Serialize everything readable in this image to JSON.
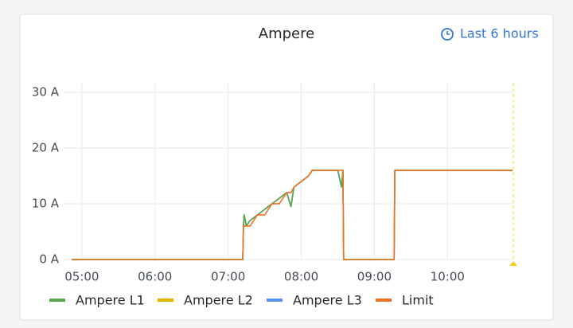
{
  "chart_data": {
    "type": "line",
    "title": "Ampere",
    "time_range": "Last 6 hours",
    "x": [
      4.86,
      7.2,
      7.21,
      7.22,
      7.25,
      7.3,
      7.4,
      7.5,
      7.6,
      7.7,
      7.8,
      7.86,
      7.9,
      8.0,
      8.1,
      8.15,
      8.5,
      8.55,
      8.57,
      8.58,
      9.27,
      9.28,
      10.89
    ],
    "series": [
      {
        "name": "Ampere L2",
        "color": "#e0b400",
        "values": [
          0,
          0,
          6,
          8,
          6,
          7,
          8,
          9,
          10,
          11,
          12,
          9.5,
          13,
          14,
          15,
          16,
          16,
          13,
          16,
          0,
          0,
          16,
          16
        ]
      },
      {
        "name": "Ampere L3",
        "color": "#5794f2",
        "values": [
          0,
          0,
          6,
          8,
          6,
          7,
          8,
          9,
          10,
          11,
          12,
          9.5,
          13,
          14,
          15,
          16,
          16,
          13,
          16,
          0,
          0,
          16,
          16
        ]
      },
      {
        "name": "Ampere L1",
        "color": "#56a64b",
        "values": [
          0,
          0,
          6,
          8,
          6,
          7,
          8,
          9,
          10,
          11,
          12,
          9.5,
          13,
          14,
          15,
          16,
          16,
          13,
          16,
          0,
          0,
          16,
          16
        ]
      },
      {
        "name": "Limit",
        "color": "#f2701f",
        "values": [
          0,
          0,
          6,
          6,
          6,
          6,
          8,
          8,
          10,
          10,
          12,
          12,
          13,
          14,
          15,
          16,
          16,
          16,
          16,
          0,
          0,
          16,
          16
        ]
      }
    ],
    "legend_order": [
      2,
      0,
      1,
      3
    ],
    "xlim": [
      4.86,
      10.9
    ],
    "xticks": [
      {
        "value": 5,
        "label": "05:00"
      },
      {
        "value": 6,
        "label": "06:00"
      },
      {
        "value": 7,
        "label": "07:00"
      },
      {
        "value": 8,
        "label": "08:00"
      },
      {
        "value": 9,
        "label": "09:00"
      },
      {
        "value": 10,
        "label": "10:00"
      }
    ],
    "ylim": [
      0,
      31.7
    ],
    "yticks": [
      {
        "value": 0,
        "label": "0 A"
      },
      {
        "value": 10,
        "label": "10 A"
      },
      {
        "value": 20,
        "label": "20 A"
      },
      {
        "value": 30,
        "label": "30 A"
      }
    ],
    "grid": true
  }
}
